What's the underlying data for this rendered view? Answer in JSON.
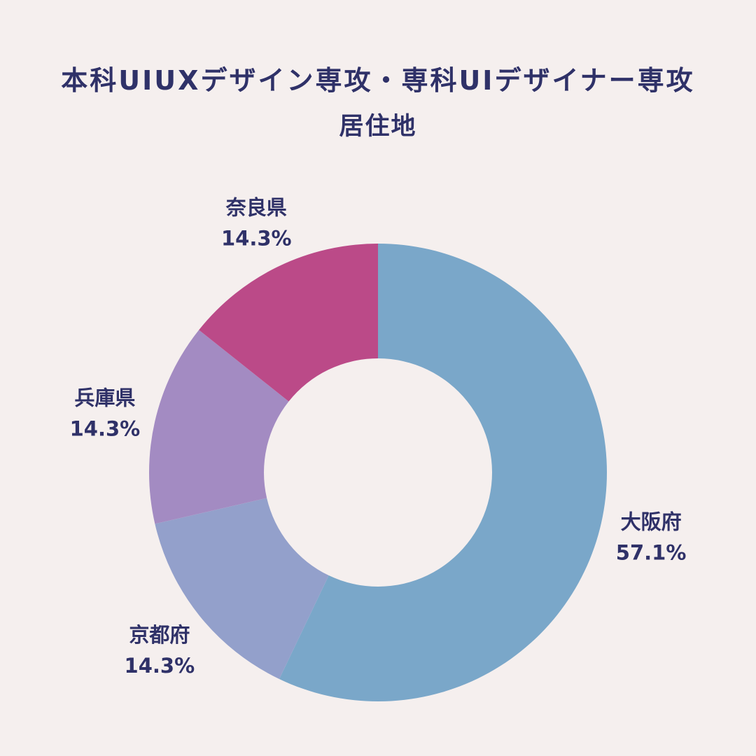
{
  "header": {
    "title": "本科UIUXデザイン専攻・専科UIデザイナー専攻",
    "subtitle": "居住地"
  },
  "chart_data": {
    "type": "pie",
    "variant": "donut",
    "title": "本科UIUXデザイン専攻・専科UIデザイナー専攻",
    "subtitle": "居住地",
    "start": "12 o'clock",
    "direction": "clockwise",
    "categories": [
      "大阪府",
      "京都府",
      "兵庫県",
      "奈良県"
    ],
    "values": [
      57.1,
      14.3,
      14.3,
      14.3
    ],
    "value_labels": [
      "57.1%",
      "14.3%",
      "14.3%",
      "14.3%"
    ],
    "colors": [
      "#7aa7c9",
      "#93a0cb",
      "#a38bc2",
      "#bb4a88"
    ],
    "label_color": "#2f3168",
    "background": "#f5efee",
    "legend": "none"
  }
}
